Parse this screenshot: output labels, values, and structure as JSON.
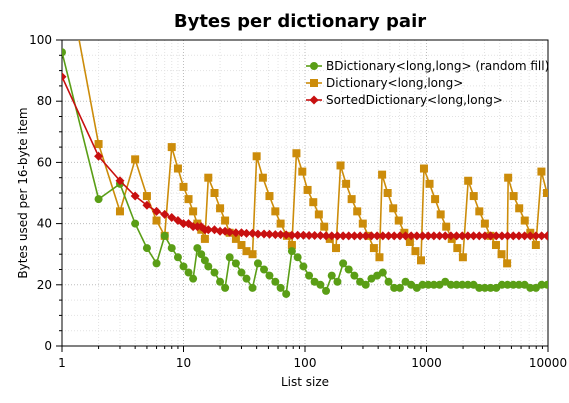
{
  "chart_data": {
    "type": "line",
    "title": "Bytes per dictionary pair",
    "xlabel": "List size",
    "ylabel": "Bytes used per 16-byte item",
    "xscale": "log",
    "xlim": [
      1,
      10000
    ],
    "ylim": [
      0,
      100
    ],
    "x_ticks": [
      "1",
      "10",
      "100",
      "1000",
      "10000"
    ],
    "y_ticks": [
      "0",
      "20",
      "40",
      "60",
      "80",
      "100"
    ],
    "grid": true,
    "legend_position": "top-right",
    "series": [
      {
        "name": "BDictionary<long,long> (random fill)",
        "color": "#5a9e16",
        "marker": "circle",
        "points": [
          [
            1,
            96
          ],
          [
            2,
            48
          ],
          [
            3,
            53
          ],
          [
            4,
            40
          ],
          [
            5,
            32
          ],
          [
            6,
            27
          ],
          [
            7,
            36
          ],
          [
            8,
            32
          ],
          [
            9,
            29
          ],
          [
            10,
            26
          ],
          [
            11,
            24
          ],
          [
            12,
            22
          ],
          [
            13,
            32
          ],
          [
            14,
            30
          ],
          [
            15,
            28
          ],
          [
            16,
            26
          ],
          [
            18,
            24
          ],
          [
            20,
            21
          ],
          [
            22,
            19
          ],
          [
            24,
            29
          ],
          [
            27,
            27
          ],
          [
            30,
            24
          ],
          [
            33,
            22
          ],
          [
            37,
            19
          ],
          [
            41,
            27
          ],
          [
            46,
            25
          ],
          [
            51,
            23
          ],
          [
            57,
            21
          ],
          [
            63,
            19
          ],
          [
            70,
            17
          ],
          [
            78,
            31
          ],
          [
            87,
            29
          ],
          [
            97,
            26
          ],
          [
            108,
            23
          ],
          [
            120,
            21
          ],
          [
            134,
            20
          ],
          [
            149,
            18
          ],
          [
            166,
            23
          ],
          [
            185,
            21
          ],
          [
            206,
            27
          ],
          [
            229,
            25
          ],
          [
            255,
            23
          ],
          [
            284,
            21
          ],
          [
            316,
            20
          ],
          [
            352,
            22
          ],
          [
            392,
            23
          ],
          [
            437,
            24
          ],
          [
            487,
            21
          ],
          [
            542,
            19
          ],
          [
            604,
            19
          ],
          [
            672,
            21
          ],
          [
            748,
            20
          ],
          [
            833,
            19
          ],
          [
            928,
            20
          ],
          [
            1033,
            20
          ],
          [
            1150,
            20
          ],
          [
            1280,
            20
          ],
          [
            1426,
            21
          ],
          [
            1588,
            20
          ],
          [
            1768,
            20
          ],
          [
            1968,
            20
          ],
          [
            2191,
            20
          ],
          [
            2440,
            20
          ],
          [
            2717,
            19
          ],
          [
            3025,
            19
          ],
          [
            3369,
            19
          ],
          [
            3751,
            19
          ],
          [
            4176,
            20
          ],
          [
            4650,
            20
          ],
          [
            5178,
            20
          ],
          [
            5765,
            20
          ],
          [
            6419,
            20
          ],
          [
            7148,
            19
          ],
          [
            7959,
            19
          ],
          [
            8862,
            20
          ],
          [
            9867,
            20
          ]
        ]
      },
      {
        "name": "Dictionary<long,long>",
        "color": "#cc8c0a",
        "marker": "square",
        "points": [
          [
            1,
            130
          ],
          [
            2,
            66
          ],
          [
            3,
            44
          ],
          [
            4,
            61
          ],
          [
            5,
            49
          ],
          [
            6,
            41
          ],
          [
            7,
            36
          ],
          [
            8,
            65
          ],
          [
            9,
            58
          ],
          [
            10,
            52
          ],
          [
            11,
            48
          ],
          [
            12,
            44
          ],
          [
            13,
            40
          ],
          [
            14,
            38
          ],
          [
            15,
            35
          ],
          [
            16,
            55
          ],
          [
            18,
            50
          ],
          [
            20,
            45
          ],
          [
            22,
            41
          ],
          [
            24,
            37
          ],
          [
            27,
            35
          ],
          [
            30,
            33
          ],
          [
            33,
            31
          ],
          [
            37,
            30
          ],
          [
            40,
            62
          ],
          [
            45,
            55
          ],
          [
            51,
            49
          ],
          [
            57,
            44
          ],
          [
            63,
            40
          ],
          [
            71,
            36
          ],
          [
            78,
            33
          ],
          [
            85,
            63
          ],
          [
            95,
            57
          ],
          [
            105,
            51
          ],
          [
            117,
            47
          ],
          [
            130,
            43
          ],
          [
            144,
            39
          ],
          [
            160,
            35
          ],
          [
            180,
            32
          ],
          [
            196,
            59
          ],
          [
            218,
            53
          ],
          [
            242,
            48
          ],
          [
            269,
            44
          ],
          [
            299,
            40
          ],
          [
            332,
            36
          ],
          [
            369,
            32
          ],
          [
            410,
            29
          ],
          [
            431,
            56
          ],
          [
            479,
            50
          ],
          [
            532,
            45
          ],
          [
            591,
            41
          ],
          [
            657,
            37
          ],
          [
            730,
            34
          ],
          [
            811,
            31
          ],
          [
            901,
            28
          ],
          [
            953,
            58
          ],
          [
            1059,
            53
          ],
          [
            1177,
            48
          ],
          [
            1308,
            43
          ],
          [
            1453,
            39
          ],
          [
            1614,
            35
          ],
          [
            1793,
            32
          ],
          [
            1993,
            29
          ],
          [
            2203,
            54
          ],
          [
            2448,
            49
          ],
          [
            2720,
            44
          ],
          [
            3022,
            40
          ],
          [
            3358,
            36
          ],
          [
            3731,
            33
          ],
          [
            4146,
            30
          ],
          [
            4607,
            27
          ],
          [
            4700,
            55
          ],
          [
            5213,
            49
          ],
          [
            5793,
            45
          ],
          [
            6436,
            41
          ],
          [
            7151,
            37
          ],
          [
            7946,
            33
          ],
          [
            8829,
            57
          ],
          [
            9810,
            50
          ]
        ]
      },
      {
        "name": "SortedDictionary<long,long>",
        "color": "#c81010",
        "marker": "diamond",
        "points": [
          [
            1,
            88
          ],
          [
            2,
            62
          ],
          [
            3,
            54
          ],
          [
            4,
            49
          ],
          [
            5,
            46
          ],
          [
            6,
            44
          ],
          [
            7,
            43
          ],
          [
            8,
            42
          ],
          [
            9,
            41
          ],
          [
            10,
            40
          ],
          [
            11,
            40
          ],
          [
            12,
            39
          ],
          [
            13,
            39
          ],
          [
            14,
            39
          ],
          [
            15,
            38
          ],
          [
            16,
            38
          ],
          [
            18,
            38
          ],
          [
            20,
            37.5
          ],
          [
            22,
            37.5
          ],
          [
            24,
            37.2
          ],
          [
            27,
            37
          ],
          [
            30,
            37
          ],
          [
            33,
            36.8
          ],
          [
            37,
            36.8
          ],
          [
            41,
            36.6
          ],
          [
            46,
            36.6
          ],
          [
            51,
            36.5
          ],
          [
            57,
            36.4
          ],
          [
            63,
            36.4
          ],
          [
            70,
            36.3
          ],
          [
            78,
            36.2
          ],
          [
            87,
            36.2
          ],
          [
            97,
            36.2
          ],
          [
            108,
            36.1
          ],
          [
            120,
            36.1
          ],
          [
            134,
            36.1
          ],
          [
            149,
            36
          ],
          [
            166,
            36
          ],
          [
            185,
            36
          ],
          [
            206,
            36
          ],
          [
            229,
            36
          ],
          [
            255,
            36
          ],
          [
            284,
            36
          ],
          [
            316,
            36
          ],
          [
            352,
            36
          ],
          [
            392,
            36
          ],
          [
            437,
            36
          ],
          [
            487,
            36
          ],
          [
            542,
            36
          ],
          [
            604,
            36
          ],
          [
            672,
            36
          ],
          [
            748,
            36
          ],
          [
            833,
            36
          ],
          [
            928,
            36
          ],
          [
            1033,
            36
          ],
          [
            1150,
            36
          ],
          [
            1280,
            36
          ],
          [
            1426,
            36
          ],
          [
            1588,
            36
          ],
          [
            1768,
            36
          ],
          [
            1968,
            36
          ],
          [
            2191,
            36
          ],
          [
            2440,
            36
          ],
          [
            2717,
            36
          ],
          [
            3025,
            36
          ],
          [
            3369,
            36
          ],
          [
            3751,
            36
          ],
          [
            4176,
            36
          ],
          [
            4650,
            36
          ],
          [
            5178,
            36
          ],
          [
            5765,
            36
          ],
          [
            6419,
            36
          ],
          [
            7148,
            36
          ],
          [
            7959,
            36
          ],
          [
            8862,
            36
          ],
          [
            9867,
            36
          ]
        ]
      }
    ]
  }
}
